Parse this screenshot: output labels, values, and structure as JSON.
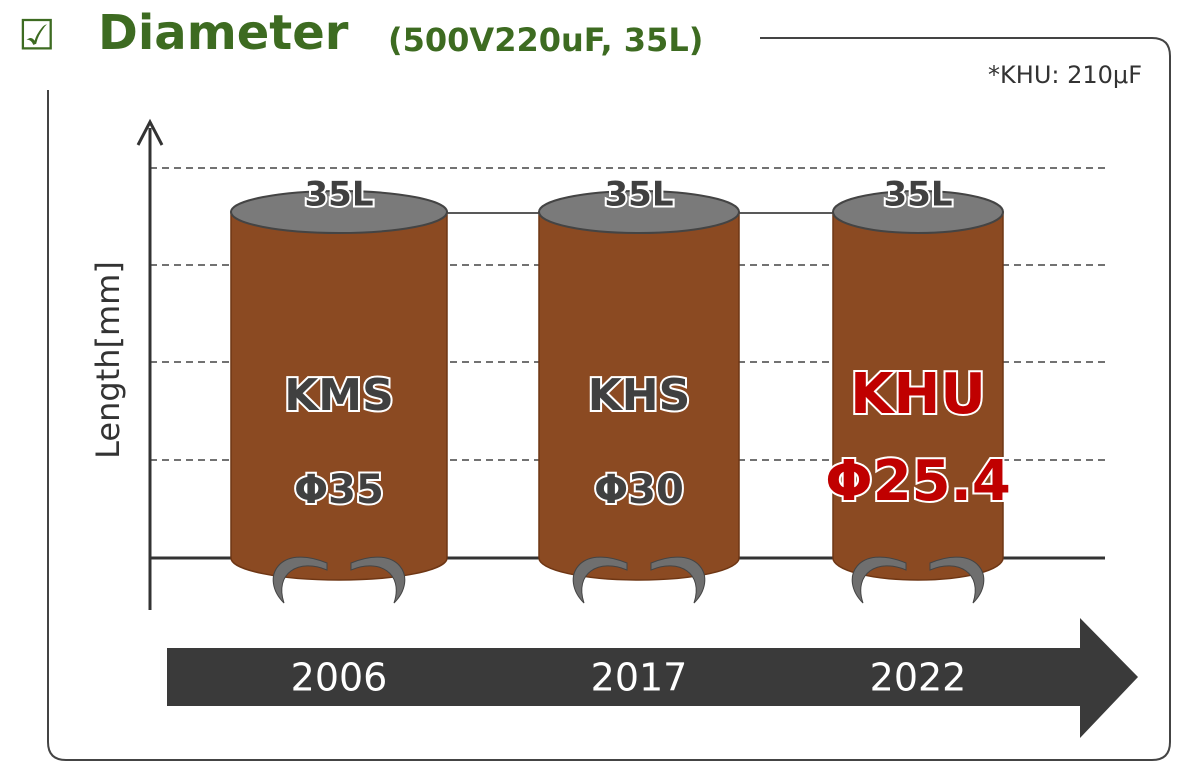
{
  "title": {
    "check": "☑",
    "heading": "Diameter",
    "spec": "(500V220uF, 35L)"
  },
  "note": "*KHU: 210μF",
  "axis_label": "Length[mm]",
  "products": [
    {
      "top": "35L",
      "name": "KMS",
      "diameter": "Φ35"
    },
    {
      "top": "35L",
      "name": "KHS",
      "diameter": "Φ30"
    },
    {
      "top": "35L",
      "name": "KHU",
      "diameter": "Φ25.4"
    }
  ],
  "timeline": [
    "2006",
    "2017",
    "2022"
  ]
}
